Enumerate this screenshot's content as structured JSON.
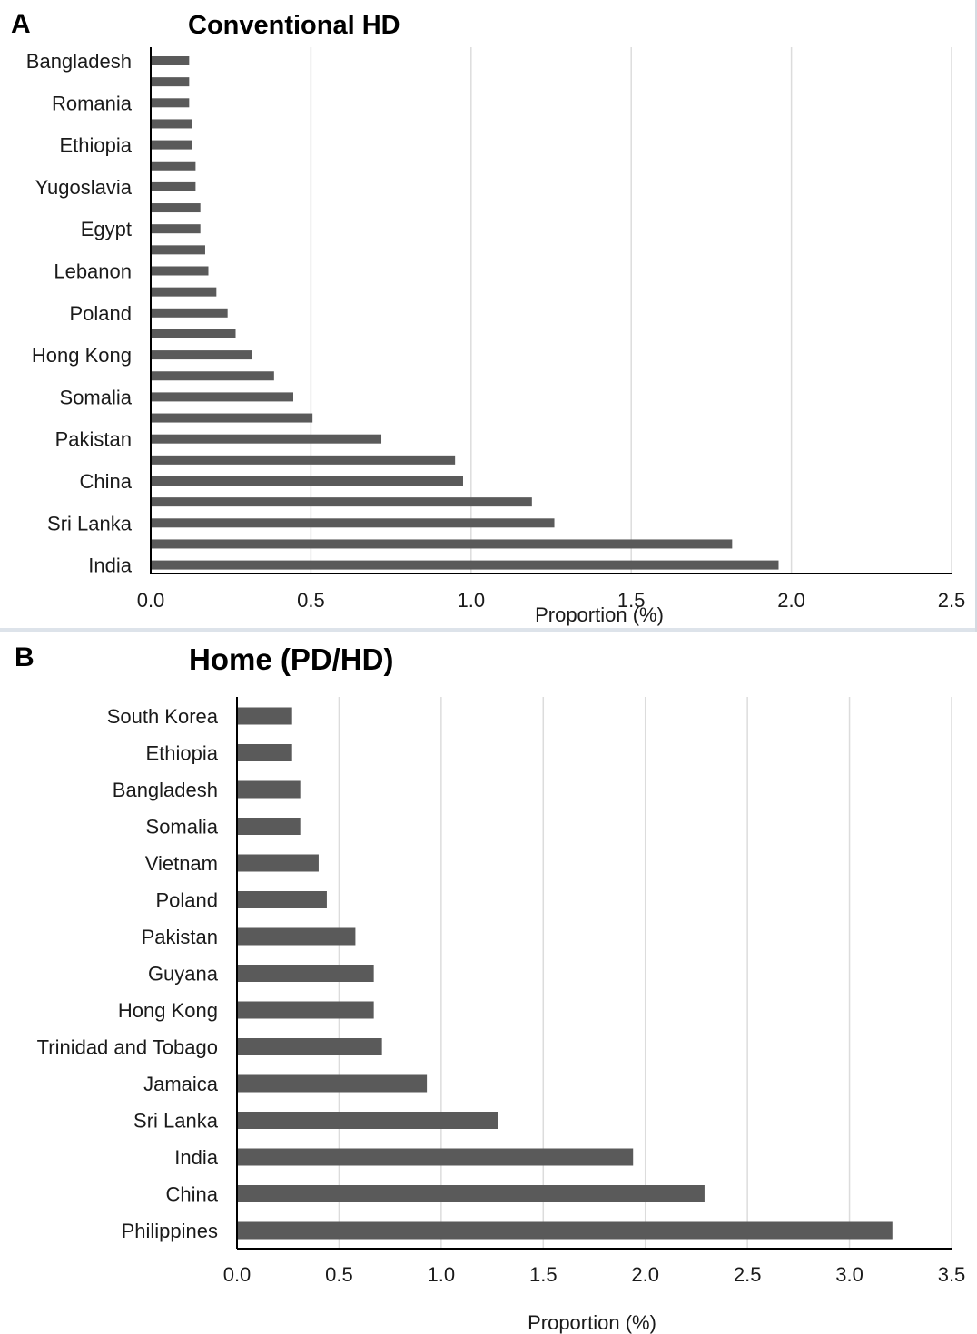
{
  "chart_data": [
    {
      "panel": "A",
      "type": "bar",
      "orientation": "horizontal",
      "title": "Conventional HD",
      "xlabel": "Proportion (%)",
      "xlim": [
        0,
        2.5
      ],
      "xticks": [
        "0.0",
        "0.5",
        "1.0",
        "1.5",
        "2.0",
        "2.5"
      ],
      "grid": true,
      "categories": [
        "Bangladesh",
        "",
        "Romania",
        "",
        "Ethiopia",
        "",
        "Yugoslavia",
        "",
        "Egypt",
        "",
        "Lebanon",
        "",
        "Poland",
        "",
        "Hong Kong",
        "",
        "Somalia",
        "",
        "Pakistan",
        "",
        "China",
        "",
        "Sri Lanka",
        "",
        "India"
      ],
      "values": [
        0.12,
        0.12,
        0.12,
        0.13,
        0.13,
        0.14,
        0.14,
        0.155,
        0.155,
        0.17,
        0.18,
        0.205,
        0.24,
        0.265,
        0.315,
        0.385,
        0.445,
        0.505,
        0.72,
        0.95,
        0.975,
        1.19,
        1.26,
        1.815,
        1.96
      ],
      "bar_color": "#5a5a5a"
    },
    {
      "panel": "B",
      "type": "bar",
      "orientation": "horizontal",
      "title": "Home (PD/HD)",
      "xlabel": "Proportion (%)",
      "xlim": [
        0,
        3.5
      ],
      "xticks": [
        "0.0",
        "0.5",
        "1.0",
        "1.5",
        "2.0",
        "2.5",
        "3.0",
        "3.5"
      ],
      "grid": true,
      "categories": [
        "South Korea",
        "Ethiopia",
        "Bangladesh",
        "Somalia",
        "Vietnam",
        "Poland",
        "Pakistan",
        "Guyana",
        "Hong Kong",
        "Trinidad and Tobago",
        "Jamaica",
        "Sri Lanka",
        "India",
        "China",
        "Philippines"
      ],
      "values": [
        0.27,
        0.27,
        0.31,
        0.31,
        0.4,
        0.44,
        0.58,
        0.67,
        0.67,
        0.71,
        0.93,
        1.28,
        1.94,
        2.29,
        3.21
      ],
      "bar_color": "#5a5a5a"
    }
  ]
}
